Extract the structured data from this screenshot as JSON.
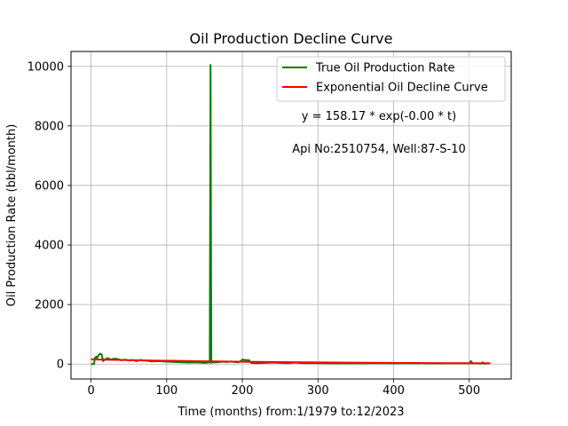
{
  "chart_data": {
    "type": "line",
    "title": "Oil Production Decline Curve",
    "xlabel": "Time (months) from:1/1979 to:12/2023",
    "ylabel": "Oil Production Rate (bbl/month)",
    "xlim": [
      -26.5,
      555.5
    ],
    "ylim": [
      -500,
      10500
    ],
    "xticks": [
      0,
      100,
      200,
      300,
      400,
      500
    ],
    "yticks": [
      0,
      2000,
      4000,
      6000,
      8000,
      10000
    ],
    "grid": true,
    "legend_position": "upper-right",
    "annotations": [
      "y = 158.17 * exp(-0.00 * t)",
      "Api No:2510754, Well:87-S-10"
    ],
    "series": [
      {
        "name": "True Oil Production Rate",
        "color": "#008000",
        "x": [
          0,
          2,
          4,
          5,
          7,
          8,
          10,
          12,
          14,
          16,
          18,
          22,
          26,
          30,
          35,
          40,
          45,
          50,
          55,
          60,
          65,
          70,
          75,
          80,
          90,
          100,
          110,
          120,
          130,
          140,
          150,
          155,
          157,
          158,
          159,
          160,
          165,
          170,
          175,
          180,
          185,
          190,
          195,
          198,
          200,
          203,
          206,
          209,
          210,
          212,
          220,
          230,
          240,
          250,
          260,
          270,
          280,
          290,
          300,
          320,
          340,
          360,
          380,
          400,
          420,
          435,
          437,
          440,
          460,
          480,
          495,
          500,
          502,
          505,
          510,
          515,
          518,
          520,
          525,
          528
        ],
        "y": [
          0,
          0,
          0,
          200,
          250,
          200,
          300,
          350,
          320,
          100,
          150,
          200,
          150,
          180,
          170,
          130,
          150,
          120,
          140,
          100,
          140,
          120,
          110,
          90,
          100,
          80,
          70,
          60,
          50,
          60,
          40,
          50,
          60,
          10050,
          40,
          60,
          60,
          70,
          80,
          70,
          90,
          70,
          60,
          100,
          150,
          140,
          130,
          130,
          80,
          40,
          30,
          40,
          50,
          40,
          30,
          50,
          30,
          30,
          30,
          20,
          20,
          20,
          30,
          20,
          30,
          20,
          40,
          20,
          20,
          20,
          20,
          20,
          100,
          20,
          30,
          10,
          60,
          10,
          30,
          20
        ]
      },
      {
        "name": "Exponential Oil Decline Curve",
        "color": "#ff0000",
        "fit": {
          "a": 158.17,
          "b": 0.0035
        },
        "x": [
          0,
          528
        ]
      }
    ]
  }
}
